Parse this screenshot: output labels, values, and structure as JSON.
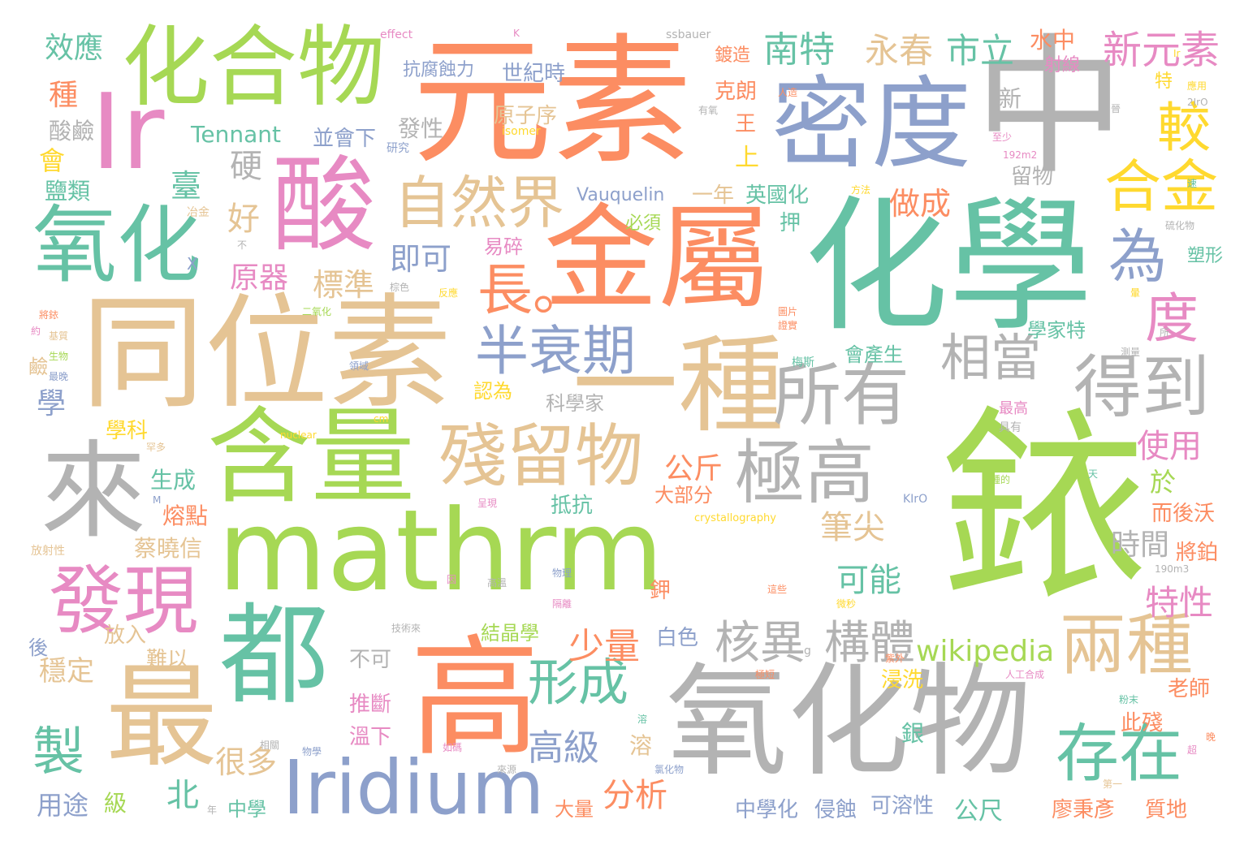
{
  "palette": [
    "#66c2a5",
    "#fc8d62",
    "#8da0cb",
    "#e78ac3",
    "#a6d854",
    "#ffd92f",
    "#e5c494",
    "#b3b3b3"
  ],
  "words": [
    "銥",
    "mathrm",
    "化學",
    "元素",
    "同位素",
    "中",
    "密度",
    "氧化物",
    "金屬",
    "含量",
    "高",
    "都",
    "Ir",
    "化合物",
    "最",
    "一種",
    "酸",
    "來",
    "氧化",
    "殘留物",
    "Iridium",
    "發現",
    "所有",
    "得到",
    "極高",
    "兩種",
    "存在",
    "自然界",
    "相當",
    "形成",
    "半衰期",
    "核異",
    "構體",
    "製",
    "合金",
    "為",
    "度",
    "長。",
    "較",
    "新元素",
    "南特",
    "永春",
    "市立",
    "wikipedia",
    "高級",
    "少量",
    "使用",
    "特性",
    "可能",
    "時間",
    "筆尖",
    "效應",
    "公斤",
    "分析",
    "北",
    "很多",
    "臺",
    "硬",
    "好",
    "原器",
    "標準",
    "即可",
    "做成",
    "世紀時",
    "抗腐蝕力",
    "原子序",
    "並會下",
    "發性",
    "Tennant",
    "Vauquelin",
    "一年",
    "英國化",
    "水中",
    "射線",
    "鍍造",
    "克朗",
    "王",
    "上",
    "新",
    "留物",
    "押",
    "種",
    "酸鹼",
    "會",
    "鹽類",
    "冶金",
    "學",
    "學科",
    "生成",
    "熔點",
    "蔡曉信",
    "穩定",
    "放入",
    "難以",
    "用途",
    "級",
    "中學",
    "中學化",
    "侵蝕",
    "可溶性",
    "公尺",
    "廖秉彥",
    "質地",
    "大量",
    "溶",
    "銀",
    "此殘",
    "老師",
    "浸洗",
    "推斷",
    "溫下",
    "不可",
    "白色",
    "鉀",
    "大部分",
    "抵抗",
    "結晶學",
    "科學家",
    "認為",
    "易碎",
    "必須",
    "而後沃",
    "將鉑",
    "於",
    "會產生",
    "學家特",
    "塑形",
    "特",
    "最高",
    "具有",
    "梅斯",
    "二氧化",
    "將銥",
    "後",
    "鹼",
    "放射性",
    "effect",
    "K",
    "ssbauer",
    "isomer",
    "研究",
    "有氧",
    "應用",
    "Ir",
    "192m2",
    "190m3",
    "nuclear",
    "crystallography",
    "KIrO",
    "cm",
    "M",
    "X",
    "不",
    "棕色",
    "反應",
    "人造",
    "圖片",
    "證實",
    "至少",
    "方法",
    "硫化物",
    "天",
    "暈",
    "種的",
    "第一",
    "粉末",
    "人工合成",
    "紫外",
    "晚",
    "超",
    "如碼",
    "來源",
    "相關",
    "物學",
    "年",
    "極短",
    "技術來",
    "高溫",
    "隔離",
    "微秒",
    "這些",
    "物理",
    "氯化物",
    "因",
    "呈現",
    "罕多",
    "基質",
    "生物",
    "最晚",
    "領域",
    "約",
    "測量",
    "所",
    "2IrO",
    "晉",
    "g",
    "速",
    "溶"
  ]
}
